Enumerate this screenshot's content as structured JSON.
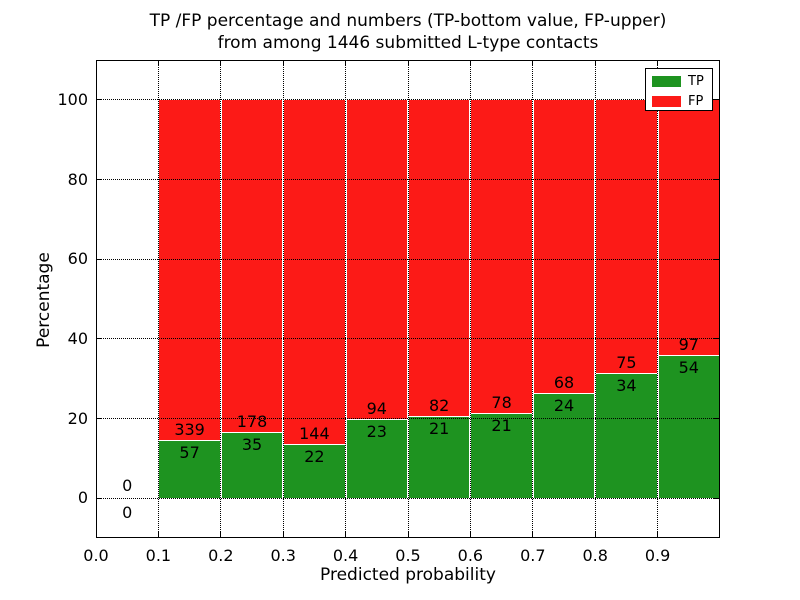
{
  "chart_data": {
    "type": "bar",
    "stacked": true,
    "normalize": "percent",
    "title_line1": "TP /FP percentage and numbers (TP-bottom value, FP-upper)",
    "title_line2": "from among 1446 submitted L-type contacts",
    "xlabel": "Predicted probability",
    "ylabel": "Percentage",
    "xlim": [
      0.0,
      1.0
    ],
    "ylim": [
      -10,
      110
    ],
    "grid": true,
    "total_contacts": 1446,
    "x_ticks": [
      {
        "value": 0.0,
        "label": "0.0"
      },
      {
        "value": 0.1,
        "label": "0.1"
      },
      {
        "value": 0.2,
        "label": "0.2"
      },
      {
        "value": 0.3,
        "label": "0.3"
      },
      {
        "value": 0.4,
        "label": "0.4"
      },
      {
        "value": 0.5,
        "label": "0.5"
      },
      {
        "value": 0.6,
        "label": "0.6"
      },
      {
        "value": 0.7,
        "label": "0.7"
      },
      {
        "value": 0.8,
        "label": "0.8"
      },
      {
        "value": 0.9,
        "label": "0.9"
      }
    ],
    "y_ticks": [
      {
        "value": 0,
        "label": "0"
      },
      {
        "value": 20,
        "label": "20"
      },
      {
        "value": 40,
        "label": "40"
      },
      {
        "value": 60,
        "label": "60"
      },
      {
        "value": 80,
        "label": "80"
      },
      {
        "value": 100,
        "label": "100"
      }
    ],
    "legend": {
      "position": "upper right",
      "entries": [
        {
          "name": "TP",
          "color": "#1e9320"
        },
        {
          "name": "FP",
          "color": "#fc1a17"
        }
      ]
    },
    "colors": {
      "tp": "#1e9320",
      "fp": "#fc1a17",
      "grid": "#000000",
      "axis": "#000000",
      "background": "#ffffff"
    },
    "bins": [
      {
        "range": [
          0.0,
          0.1
        ],
        "tp": 0,
        "fp": 0
      },
      {
        "range": [
          0.1,
          0.2
        ],
        "tp": 57,
        "fp": 339
      },
      {
        "range": [
          0.2,
          0.3
        ],
        "tp": 35,
        "fp": 178
      },
      {
        "range": [
          0.3,
          0.4
        ],
        "tp": 22,
        "fp": 144
      },
      {
        "range": [
          0.4,
          0.5
        ],
        "tp": 23,
        "fp": 94
      },
      {
        "range": [
          0.5,
          0.6
        ],
        "tp": 21,
        "fp": 82
      },
      {
        "range": [
          0.6,
          0.7
        ],
        "tp": 21,
        "fp": 78
      },
      {
        "range": [
          0.7,
          0.8
        ],
        "tp": 24,
        "fp": 68
      },
      {
        "range": [
          0.8,
          0.9
        ],
        "tp": 34,
        "fp": 75
      },
      {
        "range": [
          0.9,
          1.0
        ],
        "tp": 54,
        "fp": 97
      }
    ]
  }
}
